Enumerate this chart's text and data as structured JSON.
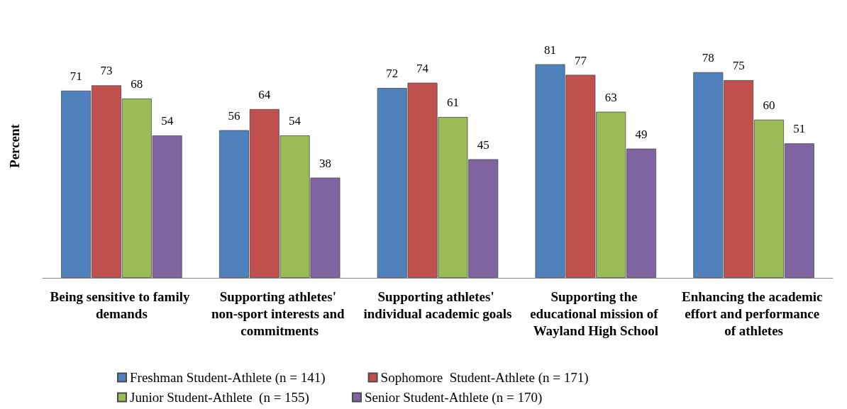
{
  "chart_data": {
    "type": "bar",
    "ylabel": "Percent",
    "categories": [
      "Being sensitive to family demands",
      "Supporting athletes' non-sport interests and commitments",
      "Supporting athletes' individual academic goals",
      "Supporting the educational mission of Wayland High School",
      "Enhancing the academic effort and performance of athletes"
    ],
    "series": [
      {
        "name": "Freshman Student-Athlete (n = 141)",
        "color": "#4f81bd",
        "values": [
          71,
          56,
          72,
          81,
          78
        ]
      },
      {
        "name": "Sophomore  Student-Athlete (n = 171)",
        "color": "#c0504d",
        "values": [
          73,
          64,
          74,
          77,
          75
        ]
      },
      {
        "name": "Junior Student-Athlete  (n = 155)",
        "color": "#9bbb59",
        "values": [
          68,
          54,
          61,
          63,
          60
        ]
      },
      {
        "name": "Senior Student-Athlete (n = 170)",
        "color": "#8064a2",
        "values": [
          54,
          38,
          45,
          49,
          51
        ]
      }
    ],
    "data_labels": true,
    "grid": false,
    "legend": "bottom",
    "tick_labels": "x"
  }
}
